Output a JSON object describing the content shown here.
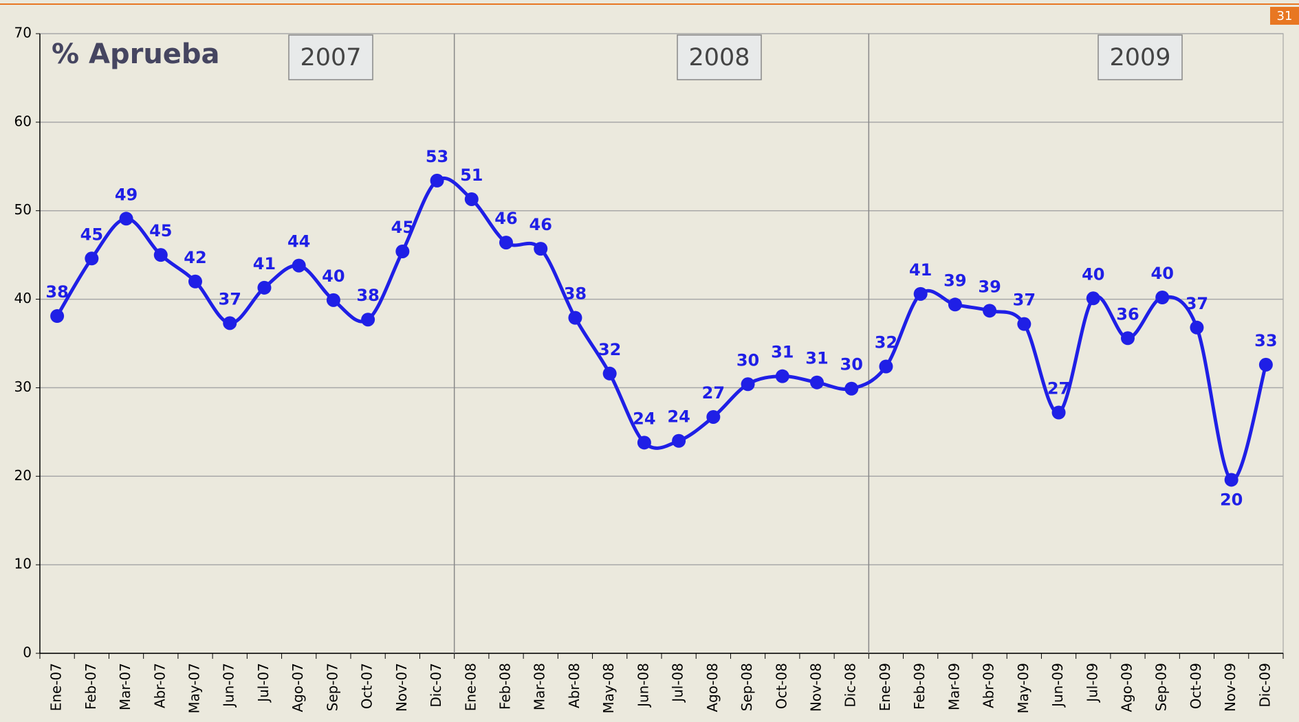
{
  "chart_data": {
    "type": "line",
    "title": "% Aprueba",
    "categories": [
      "Ene-07",
      "Feb-07",
      "Mar-07",
      "Abr-07",
      "May-07",
      "Jun-07",
      "Jul-07",
      "Ago-07",
      "Sep-07",
      "Oct-07",
      "Nov-07",
      "Dic-07",
      "Ene-08",
      "Feb-08",
      "Mar-08",
      "Abr-08",
      "May-08",
      "Jun-08",
      "Jul-08",
      "Ago-08",
      "Sep-08",
      "Oct-08",
      "Nov-08",
      "Dic-08",
      "Ene-09",
      "Feb-09",
      "Mar-09",
      "Abr-09",
      "May-09",
      "Jun-09",
      "Jul-09",
      "Ago-09",
      "Sep-09",
      "Oct-09",
      "Nov-09",
      "Dic-09"
    ],
    "series": [
      {
        "name": "% Aprueba",
        "color": "#1f1fe6",
        "values": [
          38.1,
          44.6,
          49.1,
          45.0,
          42.0,
          37.3,
          41.3,
          43.8,
          39.9,
          37.7,
          45.4,
          53.4,
          51.3,
          46.4,
          45.7,
          37.9,
          31.6,
          23.8,
          24.0,
          26.7,
          30.4,
          31.3,
          30.6,
          29.9,
          32.4,
          40.6,
          39.4,
          38.7,
          37.2,
          27.2,
          40.1,
          35.6,
          40.2,
          36.8,
          19.6,
          32.6
        ],
        "value_labels": [
          "38",
          "45",
          "49",
          "45",
          "42",
          "37",
          "41",
          "44",
          "40",
          "38",
          "45",
          "53",
          "51",
          "46",
          "46",
          "38",
          "32",
          "24",
          "24",
          "27",
          "30",
          "31",
          "31",
          "30",
          "32",
          "41",
          "39",
          "39",
          "37",
          "27",
          "40",
          "36",
          "40",
          "37",
          "20",
          "33"
        ]
      }
    ],
    "annotations": [
      "2007",
      "2008",
      "2009"
    ],
    "page_number": "31",
    "ylim": [
      0,
      70
    ],
    "yticks": [
      0,
      10,
      20,
      30,
      40,
      50,
      60,
      70
    ],
    "grid": true
  }
}
